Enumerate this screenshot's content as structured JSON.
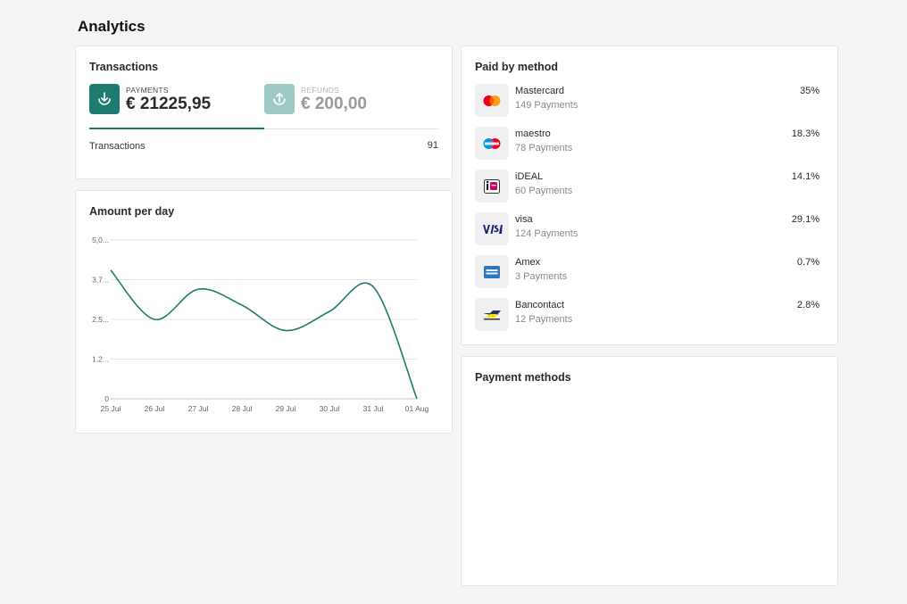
{
  "page": {
    "title": "Analytics"
  },
  "transactions_card": {
    "title": "Transactions",
    "payments": {
      "label": "PAYMENTS",
      "amount": "€ 21225,95",
      "icon": "download-arrow-icon"
    },
    "refunds": {
      "label": "REFUNDS",
      "amount": "€ 200,00",
      "icon": "upload-arrow-icon"
    },
    "row": {
      "label": "Transactions",
      "value": "91"
    }
  },
  "amount_card": {
    "title": "Amount per day"
  },
  "chart_data": {
    "type": "line",
    "title": "Amount per day",
    "x": [
      "25 Jul",
      "26 Jul",
      "27 Jul",
      "28 Jul",
      "29 Jul",
      "30 Jul",
      "31 Jul",
      "01 Aug"
    ],
    "y_ticks": [
      "0",
      "1,2...",
      "2,5...",
      "3,7...",
      "5,0..."
    ],
    "y_tick_values": [
      0,
      1250,
      2500,
      3750,
      5000
    ],
    "series": [
      {
        "values": [
          4050,
          2500,
          3450,
          2950,
          2150,
          2750,
          3530,
          0
        ]
      }
    ],
    "ylim": [
      0,
      5000
    ],
    "grid": true,
    "color": "#1e7b6f"
  },
  "paid_card": {
    "title": "Paid by method",
    "methods": [
      {
        "name": "Mastercard",
        "count": "149 Payments",
        "pct": "35%",
        "icon": "mastercard-icon"
      },
      {
        "name": "maestro",
        "count": "78 Payments",
        "pct": "18.3%",
        "icon": "maestro-icon"
      },
      {
        "name": "iDEAL",
        "count": "60 Payments",
        "pct": "14.1%",
        "icon": "ideal-icon"
      },
      {
        "name": "visa",
        "count": "124 Payments",
        "pct": "29.1%",
        "icon": "visa-icon"
      },
      {
        "name": "Amex",
        "count": "3 Payments",
        "pct": "0.7%",
        "icon": "amex-icon"
      },
      {
        "name": "Bancontact",
        "count": "12 Payments",
        "pct": "2.8%",
        "icon": "bancontact-icon"
      }
    ]
  },
  "methods_card": {
    "title": "Payment methods"
  },
  "colors": {
    "accent": "#1e7b6f",
    "accent_light": "#9ec8c3",
    "background": "#f5f5f7",
    "card": "#ffffff"
  }
}
